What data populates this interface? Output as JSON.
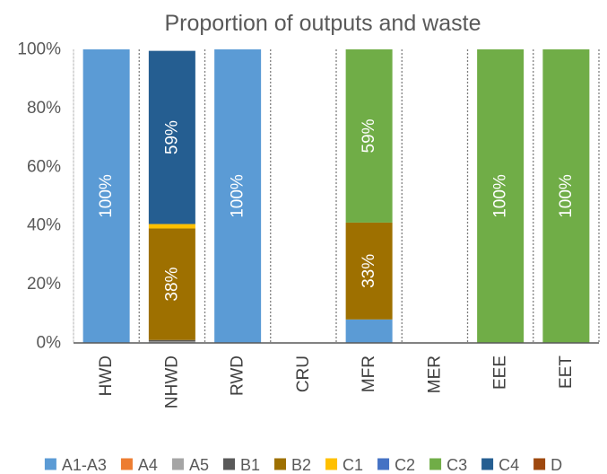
{
  "chart_data": {
    "type": "bar",
    "stacked": true,
    "title": "Proportion of outputs and waste",
    "xlabel": "",
    "ylabel": "",
    "ylim": [
      0,
      100
    ],
    "y_ticks": [
      {
        "value": 0,
        "label": "0%"
      },
      {
        "value": 20,
        "label": "20%"
      },
      {
        "value": 40,
        "label": "40%"
      },
      {
        "value": 60,
        "label": "60%"
      },
      {
        "value": 80,
        "label": "80%"
      },
      {
        "value": 100,
        "label": "100%"
      }
    ],
    "categories": [
      "HWD",
      "NHWD",
      "RWD",
      "CRU",
      "MFR",
      "MER",
      "EEE",
      "EET"
    ],
    "series": [
      {
        "name": "A1-A3",
        "color": "#5B9BD5",
        "values": [
          100,
          0,
          100,
          0,
          8,
          0,
          0,
          0
        ]
      },
      {
        "name": "A4",
        "color": "#ED7D31",
        "values": [
          0,
          0,
          0,
          0,
          0,
          0,
          0,
          0
        ]
      },
      {
        "name": "A5",
        "color": "#A5A5A5",
        "values": [
          0,
          0.5,
          0,
          0,
          0,
          0,
          0,
          0
        ]
      },
      {
        "name": "B1",
        "color": "#595959",
        "values": [
          0,
          0.5,
          0,
          0,
          0,
          0,
          0,
          0
        ]
      },
      {
        "name": "B2",
        "color": "#9E7000",
        "values": [
          0,
          38,
          0,
          0,
          33,
          0,
          0,
          0
        ]
      },
      {
        "name": "C1",
        "color": "#FFC000",
        "values": [
          0,
          1.5,
          0,
          0,
          0,
          0,
          0,
          0
        ]
      },
      {
        "name": "C2",
        "color": "#4472C4",
        "values": [
          0,
          0,
          0,
          0,
          0,
          0,
          0,
          0
        ]
      },
      {
        "name": "C3",
        "color": "#70AD47",
        "values": [
          0,
          0,
          0,
          0,
          59,
          0,
          100,
          100
        ]
      },
      {
        "name": "C4",
        "color": "#255E91",
        "values": [
          0,
          59,
          0,
          0,
          0,
          0,
          0,
          0
        ]
      },
      {
        "name": "D",
        "color": "#9E480E",
        "values": [
          0,
          0,
          0,
          0,
          0,
          0,
          0,
          0
        ]
      }
    ],
    "data_labels": [
      {
        "category": "HWD",
        "series": "A1-A3",
        "text": "100%"
      },
      {
        "category": "NHWD",
        "series": "B2",
        "text": "38%"
      },
      {
        "category": "NHWD",
        "series": "C4",
        "text": "59%"
      },
      {
        "category": "RWD",
        "series": "A1-A3",
        "text": "100%"
      },
      {
        "category": "MFR",
        "series": "B2",
        "text": "33%"
      },
      {
        "category": "MFR",
        "series": "C3",
        "text": "59%"
      },
      {
        "category": "EEE",
        "series": "C3",
        "text": "100%"
      },
      {
        "category": "EET",
        "series": "C3",
        "text": "100%"
      }
    ],
    "category_separators": "dotted",
    "grid": false,
    "legend_position": "bottom"
  }
}
